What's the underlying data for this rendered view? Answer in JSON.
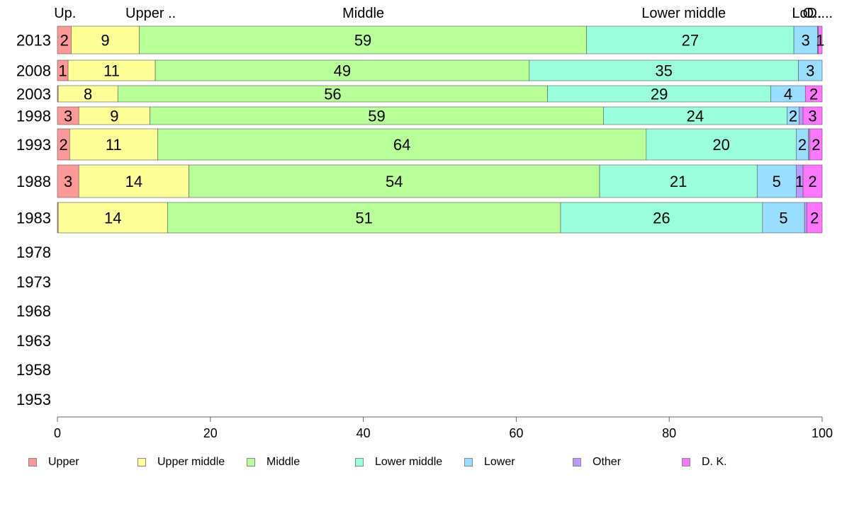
{
  "chart_data": {
    "type": "bar",
    "orientation": "horizontal",
    "stacked": true,
    "categories": [
      "2013",
      "2008",
      "2003",
      "1998",
      "1993",
      "1988",
      "1983",
      "1978",
      "1973",
      "1968",
      "1963",
      "1958",
      "1953"
    ],
    "series": [
      {
        "name": "Upper",
        "color": "#ff9999",
        "values": [
          1.8,
          1.4,
          0.1,
          2.8,
          1.6,
          2.8,
          0.1,
          null,
          null,
          null,
          null,
          null,
          null
        ]
      },
      {
        "name": "Upper middle",
        "color": "#ffff99",
        "values": [
          8.9,
          11.4,
          7.8,
          9.3,
          11.5,
          14.4,
          14.3,
          null,
          null,
          null,
          null,
          null,
          null
        ]
      },
      {
        "name": "Middle",
        "color": "#b8ff99",
        "values": [
          58.5,
          48.9,
          56.2,
          59.3,
          63.9,
          53.7,
          51.4,
          null,
          null,
          null,
          null,
          null,
          null
        ]
      },
      {
        "name": "Lower middle",
        "color": "#99ffdd",
        "values": [
          27.1,
          35.2,
          29.2,
          24.0,
          19.6,
          20.6,
          26.4,
          null,
          null,
          null,
          null,
          null,
          null
        ]
      },
      {
        "name": "Lower",
        "color": "#99ddff",
        "values": [
          3.1,
          3.1,
          4.5,
          1.6,
          1.6,
          5.1,
          5.5,
          null,
          null,
          null,
          null,
          null,
          null
        ]
      },
      {
        "name": "Other",
        "color": "#bb99ff",
        "values": [
          0.1,
          0.0,
          0.0,
          0.5,
          0.2,
          0.9,
          0.3,
          null,
          null,
          null,
          null,
          null,
          null
        ]
      },
      {
        "name": "D. K.",
        "color": "#ff77ff",
        "values": [
          0.5,
          0.0,
          2.2,
          2.5,
          1.6,
          2.5,
          2.0,
          null,
          null,
          null,
          null,
          null,
          null
        ]
      }
    ],
    "data_labels": [
      [
        "2",
        "9",
        "59",
        "27",
        "3",
        "",
        "1"
      ],
      [
        "1",
        "11",
        "49",
        "35",
        "3",
        "",
        ""
      ],
      [
        "",
        "8",
        "56",
        "29",
        "4",
        "",
        "2"
      ],
      [
        "3",
        "9",
        "59",
        "24",
        "2",
        "",
        "3"
      ],
      [
        "2",
        "11",
        "64",
        "20",
        "2",
        "",
        "2"
      ],
      [
        "3",
        "14",
        "54",
        "21",
        "5",
        "1",
        "2"
      ],
      [
        "",
        "14",
        "51",
        "26",
        "5",
        "",
        "2"
      ]
    ],
    "top_labels": [
      "Up.",
      "Upper ..",
      "Middle",
      "Lower middle",
      "Lo..",
      "O..",
      "D...."
    ],
    "xlim": [
      0,
      100
    ],
    "xticks": [
      "0",
      "20",
      "40",
      "60",
      "80",
      "100"
    ],
    "title": "",
    "xlabel": "",
    "ylabel": "",
    "grid": false,
    "legend_position": "bottom"
  }
}
